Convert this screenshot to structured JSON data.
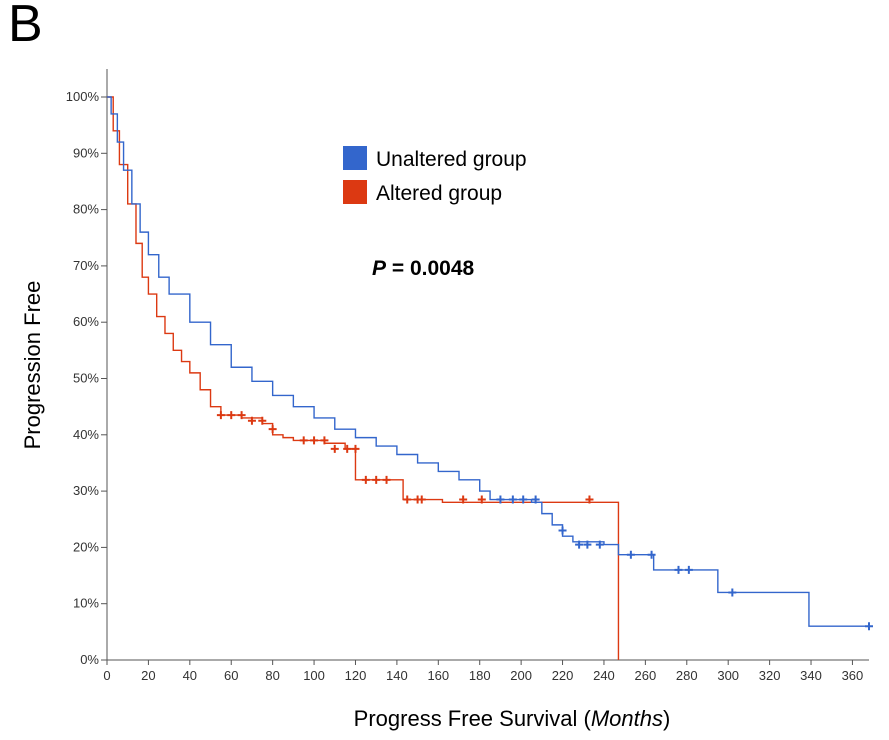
{
  "panel_letter": "B",
  "chart_data": {
    "type": "line",
    "subtype": "kaplan-meier",
    "xlabel": {
      "main": "Progress Free Survival (",
      "italic": "Months",
      "end": ")"
    },
    "ylabel": "Progression Free",
    "xlim": [
      0,
      368
    ],
    "ylim": [
      0,
      100
    ],
    "xticks": [
      0,
      20,
      40,
      60,
      80,
      100,
      120,
      140,
      160,
      180,
      200,
      220,
      240,
      260,
      280,
      300,
      320,
      340,
      360
    ],
    "yticks": [
      0,
      10,
      20,
      30,
      40,
      50,
      60,
      70,
      80,
      90,
      100
    ],
    "ytick_suffix": "%",
    "legend": {
      "position": "top-center",
      "entries": [
        {
          "label": "Unaltered group",
          "color": "#3366cc"
        },
        {
          "label": "Altered group",
          "color": "#dc3912"
        }
      ]
    },
    "annotation": {
      "p_symbol": "P",
      "p_text": " = 0.0048"
    },
    "series": [
      {
        "name": "Unaltered group",
        "color": "#3366cc",
        "steps": [
          [
            0,
            100
          ],
          [
            2,
            97
          ],
          [
            5,
            92
          ],
          [
            8,
            87
          ],
          [
            12,
            81
          ],
          [
            16,
            76
          ],
          [
            20,
            72
          ],
          [
            25,
            68
          ],
          [
            30,
            65
          ],
          [
            40,
            60
          ],
          [
            50,
            56
          ],
          [
            60,
            52
          ],
          [
            70,
            49.5
          ],
          [
            80,
            47
          ],
          [
            90,
            45
          ],
          [
            100,
            43
          ],
          [
            110,
            41
          ],
          [
            120,
            39.5
          ],
          [
            130,
            38
          ],
          [
            140,
            36.5
          ],
          [
            150,
            35
          ],
          [
            160,
            33.5
          ],
          [
            170,
            32
          ],
          [
            180,
            30
          ],
          [
            185,
            28.5
          ],
          [
            205,
            28
          ],
          [
            210,
            26
          ],
          [
            215,
            24
          ],
          [
            220,
            22
          ],
          [
            225,
            21
          ],
          [
            240,
            20.5
          ],
          [
            247,
            18.7
          ],
          [
            264,
            16
          ],
          [
            274,
            16
          ],
          [
            295,
            12
          ],
          [
            302,
            12
          ],
          [
            339,
            6
          ],
          [
            368,
            6
          ]
        ],
        "censors": [
          [
            190,
            28.5
          ],
          [
            196,
            28.5
          ],
          [
            201,
            28.5
          ],
          [
            207,
            28.5
          ],
          [
            220,
            23
          ],
          [
            228,
            20.5
          ],
          [
            232,
            20.5
          ],
          [
            238,
            20.5
          ],
          [
            253,
            18.7
          ],
          [
            263,
            18.7
          ],
          [
            276,
            16
          ],
          [
            281,
            16
          ],
          [
            302,
            12
          ],
          [
            368,
            6
          ]
        ]
      },
      {
        "name": "Altered group",
        "color": "#dc3912",
        "steps": [
          [
            0,
            100
          ],
          [
            3,
            94
          ],
          [
            6,
            88
          ],
          [
            10,
            81
          ],
          [
            14,
            74
          ],
          [
            17,
            68
          ],
          [
            20,
            65
          ],
          [
            24,
            61
          ],
          [
            28,
            58
          ],
          [
            32,
            55
          ],
          [
            36,
            53
          ],
          [
            40,
            51
          ],
          [
            45,
            48
          ],
          [
            50,
            45
          ],
          [
            55,
            43.5
          ],
          [
            65,
            43
          ],
          [
            75,
            42
          ],
          [
            80,
            40
          ],
          [
            85,
            39.5
          ],
          [
            90,
            39
          ],
          [
            105,
            38.5
          ],
          [
            115,
            37.5
          ],
          [
            120,
            32
          ],
          [
            140,
            32
          ],
          [
            143,
            28.5
          ],
          [
            162,
            28
          ],
          [
            247,
            28
          ],
          [
            247,
            0
          ]
        ],
        "censors": [
          [
            55,
            43.5
          ],
          [
            60,
            43.5
          ],
          [
            65,
            43.5
          ],
          [
            70,
            42.5
          ],
          [
            75,
            42.5
          ],
          [
            80,
            41
          ],
          [
            95,
            39
          ],
          [
            100,
            39
          ],
          [
            105,
            39
          ],
          [
            110,
            37.5
          ],
          [
            116,
            37.5
          ],
          [
            120,
            37.5
          ],
          [
            125,
            32
          ],
          [
            130,
            32
          ],
          [
            135,
            32
          ],
          [
            145,
            28.5
          ],
          [
            150,
            28.5
          ],
          [
            152,
            28.5
          ],
          [
            172,
            28.5
          ],
          [
            181,
            28.5
          ],
          [
            233,
            28.5
          ]
        ]
      }
    ]
  }
}
